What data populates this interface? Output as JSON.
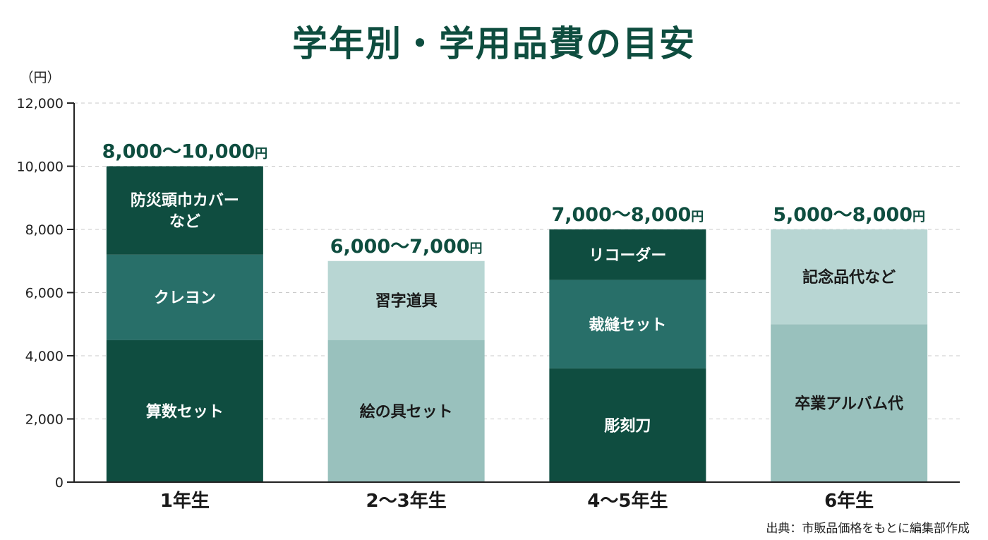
{
  "title": "学年別・学用品費の目安",
  "source": "出典：市販品価格をもとに編集部作成",
  "chart_data": {
    "type": "bar",
    "stacked": true,
    "title": "学年別・学用品費の目安",
    "ylabel": "（円）",
    "ylim": [
      0,
      12000
    ],
    "yticks": [
      0,
      2000,
      4000,
      6000,
      8000,
      10000,
      12000
    ],
    "ytick_labels": [
      "0",
      "2,000",
      "4,000",
      "6,000",
      "8,000",
      "10,000",
      "12,000"
    ],
    "grid": true,
    "categories": [
      {
        "label": "1年生",
        "total_label": "8,000〜10,000",
        "total_unit": "円",
        "segments": [
          {
            "name": "算数セット",
            "value": 4500,
            "color": "#0f4d40",
            "text_color": "#ffffff"
          },
          {
            "name": "クレヨン",
            "value": 2700,
            "color": "#286f69",
            "text_color": "#ffffff"
          },
          {
            "name": [
              "防災頭巾カバー",
              "など"
            ],
            "value": 2800,
            "color": "#0f4d40",
            "text_color": "#ffffff"
          }
        ]
      },
      {
        "label": "2〜3年生",
        "total_label": "6,000〜7,000",
        "total_unit": "円",
        "segments": [
          {
            "name": "絵の具セット",
            "value": 4500,
            "color": "#99c1bd",
            "text_color": "#1a1a1a"
          },
          {
            "name": "習字道具",
            "value": 2500,
            "color": "#b8d6d3",
            "text_color": "#1a1a1a"
          }
        ]
      },
      {
        "label": "4〜5年生",
        "total_label": "7,000〜8,000",
        "total_unit": "円",
        "segments": [
          {
            "name": "彫刻刀",
            "value": 3600,
            "color": "#0f4d40",
            "text_color": "#ffffff"
          },
          {
            "name": "裁縫セット",
            "value": 2800,
            "color": "#286f69",
            "text_color": "#ffffff"
          },
          {
            "name": "リコーダー",
            "value": 1600,
            "color": "#0f4d40",
            "text_color": "#ffffff"
          }
        ]
      },
      {
        "label": "6年生",
        "total_label": "5,000〜8,000",
        "total_unit": "円",
        "segments": [
          {
            "name": "卒業アルバム代",
            "value": 5000,
            "color": "#99c1bd",
            "text_color": "#1a1a1a"
          },
          {
            "name": "記念品代など",
            "value": 3000,
            "color": "#b8d6d3",
            "text_color": "#1a1a1a"
          }
        ]
      }
    ]
  }
}
